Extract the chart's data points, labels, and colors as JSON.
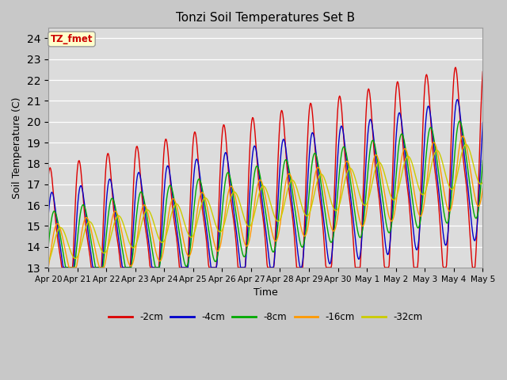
{
  "title": "Tonzi Soil Temperatures Set B",
  "xlabel": "Time",
  "ylabel": "Soil Temperature (C)",
  "ylim": [
    13.0,
    24.5
  ],
  "yticks": [
    13.0,
    14.0,
    15.0,
    16.0,
    17.0,
    18.0,
    19.0,
    20.0,
    21.0,
    22.0,
    23.0,
    24.0
  ],
  "series_colors": [
    "#dd0000",
    "#0000cc",
    "#00aa00",
    "#ff9900",
    "#cccc00"
  ],
  "series_labels": [
    "-2cm",
    "-4cm",
    "-8cm",
    "-16cm",
    "-32cm"
  ],
  "annotation_text": "TZ_fmet",
  "annotation_color": "#cc0000",
  "annotation_bg": "#ffffcc",
  "fig_bg": "#c8c8c8",
  "plot_bg": "#dcdcdc",
  "tick_labels": [
    "Apr 20",
    "Apr 21",
    "Apr 22",
    "Apr 23",
    "Apr 24",
    "Apr 25",
    "Apr 26",
    "Apr 27",
    "Apr 28",
    "Apr 29",
    "Apr 30",
    "May 1",
    "May 2",
    "May 3",
    "May 4",
    "May 5"
  ]
}
